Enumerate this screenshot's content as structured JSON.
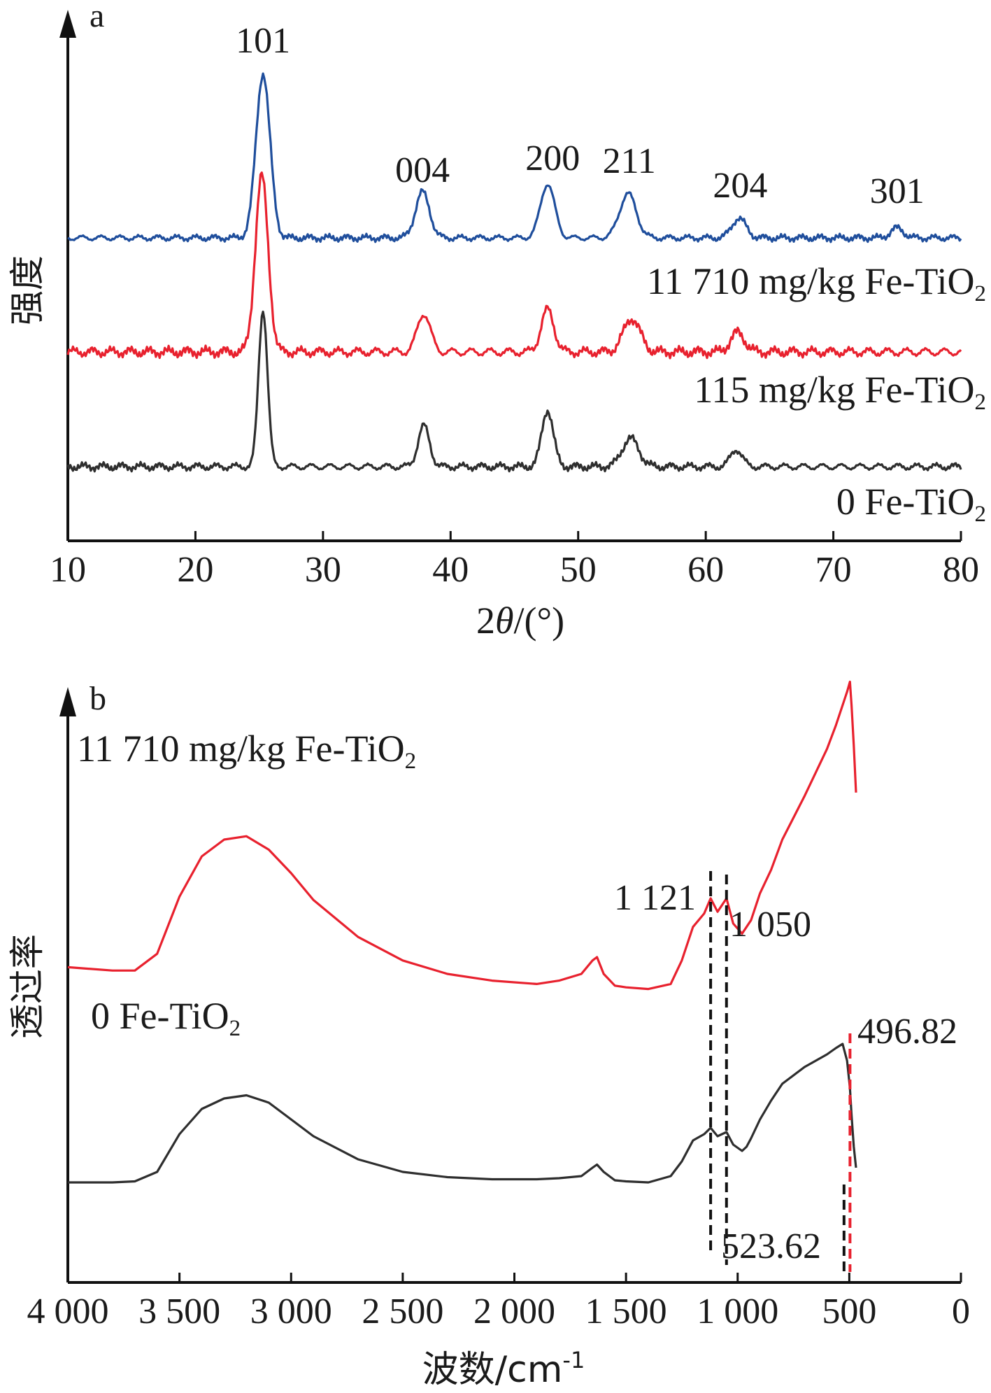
{
  "chart_data": [
    {
      "type": "line",
      "panel_label": "a",
      "xlabel_prefix": "2",
      "xlabel_theta": "θ",
      "xlabel_suffix": "/(°)",
      "ylabel": "强度",
      "xlim": [
        10,
        80
      ],
      "x_ticks": [
        "10",
        "20",
        "30",
        "40",
        "50",
        "60",
        "70",
        "80"
      ],
      "peak_labels": [
        {
          "text": "101",
          "x": 25.3
        },
        {
          "text": "004",
          "x": 37.8
        },
        {
          "text": "200",
          "x": 48.0
        },
        {
          "text": "211",
          "x": 54.0
        },
        {
          "text": "204",
          "x": 62.7
        },
        {
          "text": "301",
          "x": 75.0
        }
      ],
      "series": [
        {
          "name_main": "11 710 mg/kg Fe-TiO",
          "name_sub": "2",
          "color": "#1f4e9c",
          "baseline": 0.1,
          "peaks": [
            [
              25.3,
              1.0,
              0.55
            ],
            [
              37.8,
              0.28,
              0.55
            ],
            [
              47.6,
              0.33,
              0.55
            ],
            [
              53.9,
              0.27,
              0.65
            ],
            [
              62.6,
              0.12,
              0.55
            ],
            [
              75.0,
              0.06,
              0.5
            ]
          ]
        },
        {
          "name_main": "115 mg/kg Fe-TiO",
          "name_sub": "2",
          "color": "#e8212e",
          "baseline": 0.1,
          "peaks": [
            [
              25.2,
              1.0,
              0.5
            ],
            [
              37.9,
              0.22,
              0.5
            ],
            [
              47.6,
              0.24,
              0.5
            ],
            [
              54.2,
              0.19,
              0.65
            ],
            [
              62.5,
              0.11,
              0.55
            ]
          ]
        },
        {
          "name_main": "0 Fe-TiO",
          "name_sub": "2",
          "color": "#2e2e2e",
          "baseline": 0.1,
          "peaks": [
            [
              25.3,
              1.0,
              0.35
            ],
            [
              37.9,
              0.26,
              0.45
            ],
            [
              47.6,
              0.36,
              0.45
            ],
            [
              54.1,
              0.18,
              0.65
            ],
            [
              62.4,
              0.11,
              0.45
            ]
          ]
        }
      ]
    },
    {
      "type": "line",
      "panel_label": "b",
      "xlabel_main": "波数/cm",
      "xlabel_sup": "-1",
      "ylabel": "透过率",
      "xlim": [
        4000,
        0
      ],
      "x_ticks": [
        "4 000",
        "3 500",
        "3 000",
        "2 500",
        "2 000",
        "1 500",
        "1 000",
        "500",
        "0"
      ],
      "annotations": [
        {
          "text": "1 121",
          "x": 1121
        },
        {
          "text": "1 050",
          "x": 1050
        },
        {
          "text": "496.82",
          "x": 496.82
        },
        {
          "text": "523.62",
          "x": 523.62
        }
      ],
      "series": [
        {
          "name_main": "11 710 mg/kg Fe-TiO",
          "name_sub": "2",
          "color": "#e8212e",
          "x": [
            4000,
            3800,
            3700,
            3600,
            3500,
            3400,
            3300,
            3200,
            3100,
            3000,
            2900,
            2700,
            2500,
            2300,
            2100,
            1900,
            1800,
            1700,
            1650,
            1630,
            1600,
            1550,
            1500,
            1400,
            1300,
            1250,
            1200,
            1150,
            1121,
            1090,
            1050,
            1020,
            980,
            960,
            940,
            900,
            850,
            800,
            700,
            600,
            560,
            530,
            510,
            497,
            490,
            480,
            470
          ],
          "y": [
            0.88,
            0.89,
            0.89,
            0.84,
            0.67,
            0.55,
            0.5,
            0.49,
            0.53,
            0.6,
            0.68,
            0.79,
            0.86,
            0.9,
            0.92,
            0.93,
            0.92,
            0.9,
            0.86,
            0.85,
            0.9,
            0.935,
            0.94,
            0.945,
            0.93,
            0.86,
            0.76,
            0.72,
            0.675,
            0.715,
            0.675,
            0.75,
            0.78,
            0.76,
            0.74,
            0.66,
            0.59,
            0.5,
            0.37,
            0.23,
            0.16,
            0.1,
            0.06,
            0.03,
            0.1,
            0.22,
            0.36
          ]
        },
        {
          "name_main": "0 Fe-TiO",
          "name_sub": "2",
          "color": "#2e2e2e",
          "x": [
            4000,
            3800,
            3700,
            3600,
            3500,
            3400,
            3300,
            3200,
            3100,
            3000,
            2900,
            2700,
            2500,
            2300,
            2100,
            1900,
            1800,
            1700,
            1650,
            1630,
            1600,
            1550,
            1500,
            1400,
            1300,
            1250,
            1200,
            1150,
            1121,
            1090,
            1050,
            1020,
            980,
            960,
            940,
            900,
            850,
            800,
            700,
            600,
            560,
            530,
            510,
            497,
            490,
            480,
            470
          ],
          "y": [
            0.95,
            0.95,
            0.945,
            0.9,
            0.72,
            0.6,
            0.55,
            0.535,
            0.57,
            0.65,
            0.73,
            0.84,
            0.9,
            0.925,
            0.935,
            0.935,
            0.93,
            0.92,
            0.88,
            0.865,
            0.9,
            0.94,
            0.945,
            0.95,
            0.92,
            0.85,
            0.75,
            0.72,
            0.69,
            0.73,
            0.71,
            0.77,
            0.8,
            0.78,
            0.74,
            0.65,
            0.56,
            0.48,
            0.4,
            0.34,
            0.31,
            0.29,
            0.37,
            0.5,
            0.63,
            0.78,
            0.88
          ]
        }
      ]
    }
  ]
}
